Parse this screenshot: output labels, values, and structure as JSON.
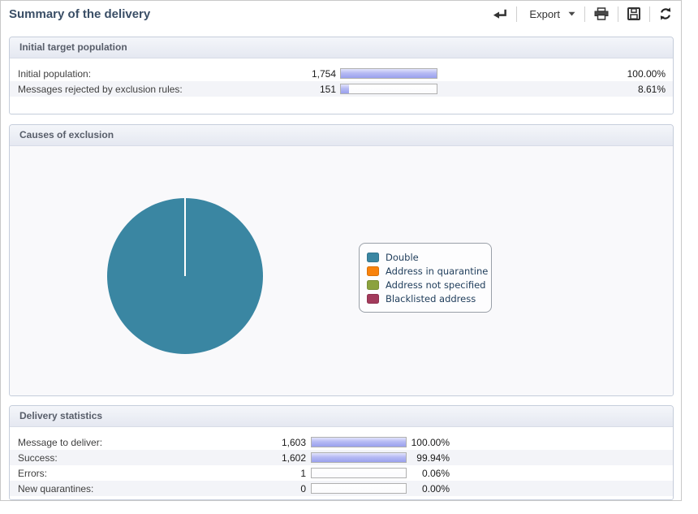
{
  "page": {
    "title": "Summary of the delivery"
  },
  "toolbar": {
    "export_label": "Export",
    "icons": [
      "back-icon",
      "chevron-down-icon",
      "printer-icon",
      "save-icon",
      "refresh-icon"
    ]
  },
  "sections": {
    "initial": {
      "title": "Initial target population",
      "rows": [
        {
          "label": "Initial population:",
          "value": "1,754",
          "percent": "100.00%",
          "bar_pct": 100
        },
        {
          "label": "Messages rejected by exclusion rules:",
          "value": "151",
          "percent": "8.61%",
          "bar_pct": 8.61
        }
      ]
    },
    "exclusion": {
      "title": "Causes of exclusion",
      "legend": [
        {
          "label": "Double",
          "color": "#3a86a2"
        },
        {
          "label": "Address in quarantine",
          "color": "#f8820c"
        },
        {
          "label": "Address not specified",
          "color": "#8ba23e"
        },
        {
          "label": "Blacklisted address",
          "color": "#a23a5b"
        }
      ]
    },
    "stats": {
      "title": "Delivery statistics",
      "rows": [
        {
          "label": "Message to deliver:",
          "value": "1,603",
          "percent": "100.00%",
          "bar_pct": 100
        },
        {
          "label": "Success:",
          "value": "1,602",
          "percent": "99.94%",
          "bar_pct": 99.94
        },
        {
          "label": "Errors:",
          "value": "1",
          "percent": "0.06%",
          "bar_pct": 0.06
        },
        {
          "label": "New quarantines:",
          "value": "0",
          "percent": "0.00%",
          "bar_pct": 0
        }
      ]
    }
  },
  "chart_data": {
    "type": "pie",
    "title": "Causes of exclusion",
    "slices": [
      {
        "label": "Double",
        "value": 151,
        "percent": 100,
        "color": "#3a86a2"
      },
      {
        "label": "Address in quarantine",
        "value": 0,
        "percent": 0,
        "color": "#f8820c"
      },
      {
        "label": "Address not specified",
        "value": 0,
        "percent": 0,
        "color": "#8ba23e"
      },
      {
        "label": "Blacklisted address",
        "value": 0,
        "percent": 0,
        "color": "#a23a5b"
      }
    ],
    "legend_position": "right",
    "split_line_angle_deg": 0
  },
  "colors": {
    "bar_fill": "#aeb3f1",
    "panel_header_bg": "#e9ecf4",
    "title_text": "#3a4e66"
  }
}
